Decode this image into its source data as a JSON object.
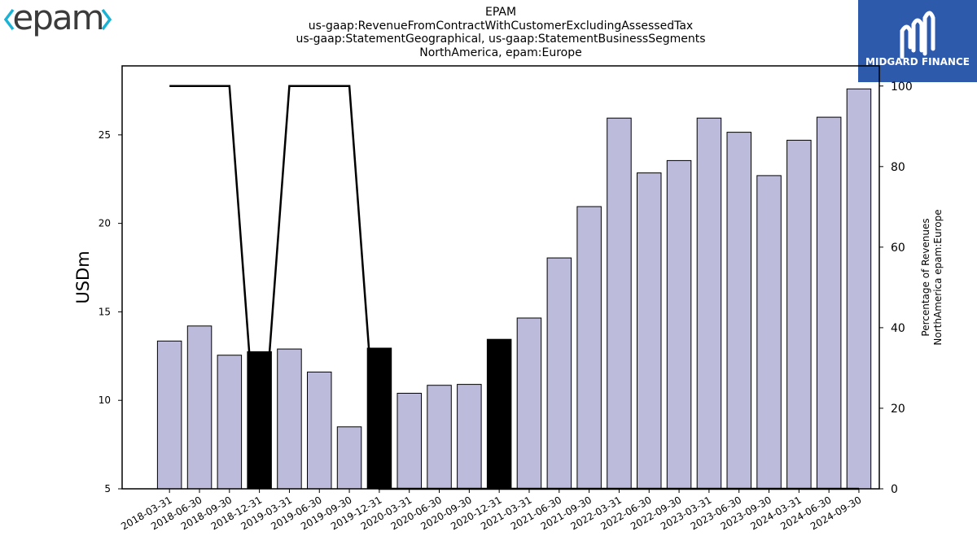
{
  "logos": {
    "left_text": "epam",
    "right_text": "MIDGARD FINANCE",
    "left_icon": "chevron-bracket-icon",
    "right_icon": "midgard-m-icon",
    "left_color": "#3b3b3b",
    "accent_color": "#1ab3d6",
    "right_bg": "#2e5aac"
  },
  "header": {
    "line1": "EPAM",
    "line2": "us-gaap:RevenueFromContractWithCustomerExcludingAssessedTax",
    "line3": "us-gaap:StatementGeographical, us-gaap:StatementBusinessSegments",
    "line4": "NorthAmerica, epam:Europe"
  },
  "chart_data": {
    "type": "bar",
    "categories": [
      "2018-03-31",
      "2018-06-30",
      "2018-09-30",
      "2018-12-31",
      "2019-03-31",
      "2019-06-30",
      "2019-09-30",
      "2019-12-31",
      "2020-03-31",
      "2020-06-30",
      "2020-09-30",
      "2020-12-31",
      "2021-03-31",
      "2021-06-30",
      "2021-09-30",
      "2022-03-31",
      "2022-06-30",
      "2022-09-30",
      "2023-03-31",
      "2023-06-30",
      "2023-09-30",
      "2024-03-31",
      "2024-06-30",
      "2024-09-30"
    ],
    "series": [
      {
        "values": [
          13.35,
          14.2,
          12.55,
          12.75,
          12.9,
          11.6,
          8.5,
          12.95,
          10.4,
          10.85,
          10.9,
          13.45,
          14.65,
          18.05,
          20.95,
          25.95,
          22.85,
          23.55,
          25.95,
          25.15,
          22.7,
          24.7,
          26.0,
          27.6
        ],
        "highlight": [
          false,
          false,
          false,
          true,
          false,
          false,
          false,
          true,
          false,
          false,
          false,
          true,
          false,
          false,
          false,
          false,
          false,
          false,
          false,
          false,
          false,
          false,
          false,
          false
        ]
      },
      {
        "axis": "right",
        "type": "line",
        "values": [
          100,
          100,
          100,
          0,
          100,
          100,
          100,
          0,
          0,
          0,
          0,
          0,
          0,
          0,
          0,
          0,
          0,
          0,
          0,
          0,
          0,
          0,
          0,
          0
        ]
      }
    ],
    "ylabel": "USDm",
    "ylabel_right_line1": "Percentage of Revenues",
    "ylabel_right_line2": "NorthAmerica epam:Europe",
    "ylim": [
      5,
      28.9
    ],
    "yticks": [
      5,
      10,
      15,
      20,
      25
    ],
    "ylim_right": [
      0,
      105
    ],
    "yticks_right": [
      0,
      20,
      40,
      60,
      80,
      100
    ],
    "bar_color": "#bdbbdb",
    "highlight_color": "#000000",
    "line_color": "#000000",
    "grid": false
  }
}
